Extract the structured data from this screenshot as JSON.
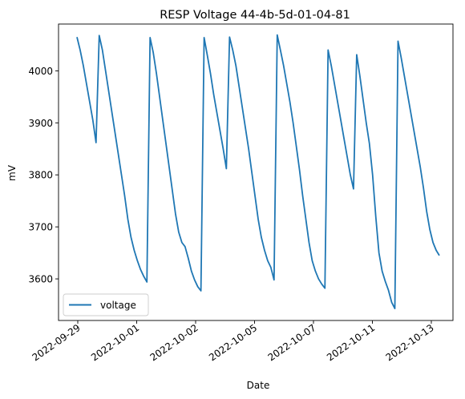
{
  "chart_data": {
    "type": "line",
    "title": "RESP Voltage 44-4b-5d-01-04-81",
    "xlabel": "Date",
    "ylabel": "mV",
    "x_tick_labels": [
      "2022-09-29",
      "2022-10-01",
      "2022-10-02",
      "2022-10-05",
      "2022-10-07",
      "2022-10-11",
      "2022-10-13"
    ],
    "y_ticks": [
      3600,
      3700,
      3800,
      3900,
      4000
    ],
    "ylim": [
      3520,
      4090
    ],
    "grid": false,
    "legend_position": "lower-left",
    "series": [
      {
        "name": "voltage",
        "color": "#1f77b4",
        "values": [
          4065,
          4040,
          4010,
          3975,
          3940,
          3905,
          3862,
          4068,
          4040,
          4000,
          3960,
          3920,
          3880,
          3840,
          3800,
          3760,
          3715,
          3680,
          3655,
          3635,
          3618,
          3605,
          3594,
          4064,
          4035,
          3995,
          3950,
          3905,
          3860,
          3815,
          3770,
          3725,
          3690,
          3670,
          3662,
          3640,
          3615,
          3598,
          3585,
          3577,
          4064,
          4030,
          3995,
          3955,
          3920,
          3885,
          3850,
          3812,
          4065,
          4040,
          4010,
          3970,
          3930,
          3890,
          3850,
          3805,
          3760,
          3715,
          3680,
          3655,
          3635,
          3622,
          3598,
          4069,
          4040,
          4010,
          3975,
          3940,
          3900,
          3855,
          3810,
          3760,
          3715,
          3670,
          3635,
          3615,
          3600,
          3590,
          3582,
          4040,
          4010,
          3975,
          3940,
          3905,
          3870,
          3835,
          3800,
          3773,
          4031,
          3990,
          3945,
          3900,
          3860,
          3800,
          3720,
          3650,
          3615,
          3595,
          3578,
          3555,
          3543,
          4057,
          4025,
          3990,
          3955,
          3920,
          3885,
          3850,
          3815,
          3775,
          3730,
          3695,
          3670,
          3655,
          3645
        ]
      }
    ]
  }
}
